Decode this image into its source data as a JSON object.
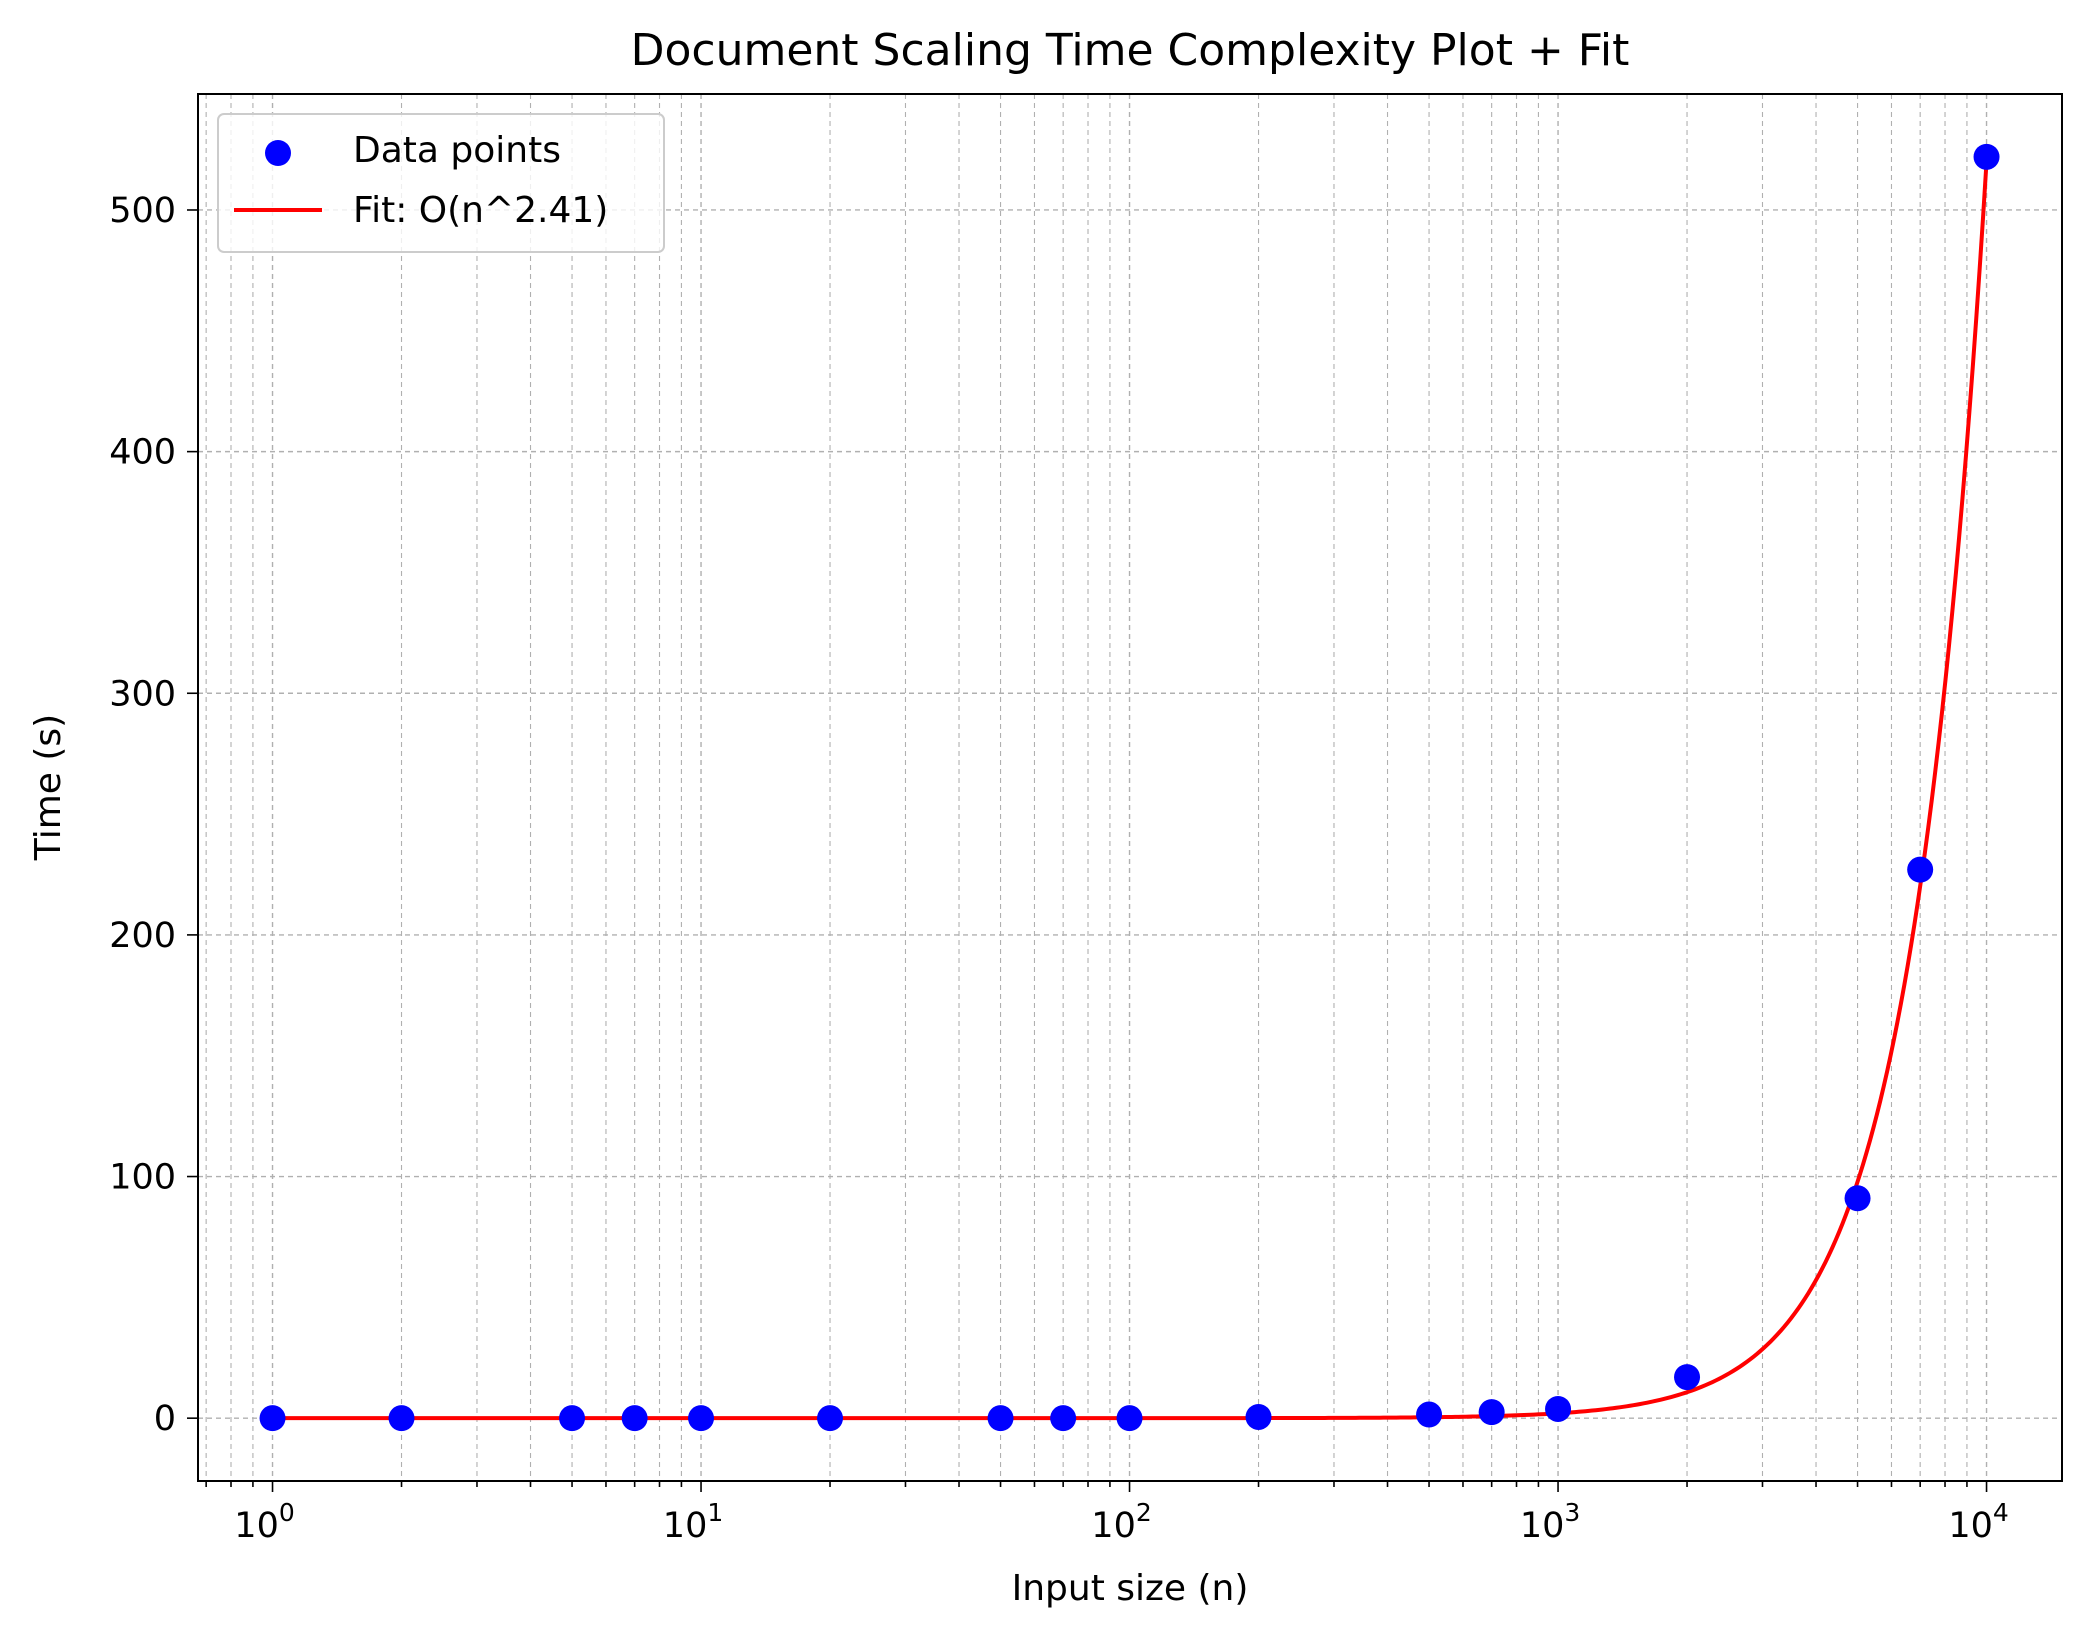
{
  "chart_data": {
    "type": "scatter",
    "title": "Document Scaling Time Complexity Plot + Fit",
    "xlabel": "Input size (n)",
    "ylabel": "Time (s)",
    "xscale": "log",
    "xlim": [
      0.67,
      15000
    ],
    "ylim": [
      -26,
      548
    ],
    "grid": true,
    "legend": "upper-left",
    "colors": {
      "points": "#0000ff",
      "fit": "#ff0000"
    },
    "x_ticks": [
      {
        "value": 1,
        "base": "10",
        "exp": "0"
      },
      {
        "value": 10,
        "base": "10",
        "exp": "1"
      },
      {
        "value": 100,
        "base": "10",
        "exp": "2"
      },
      {
        "value": 1000,
        "base": "10",
        "exp": "3"
      },
      {
        "value": 10000,
        "base": "10",
        "exp": "4"
      }
    ],
    "y_ticks": [
      {
        "value": 0,
        "label": "0"
      },
      {
        "value": 100,
        "label": "100"
      },
      {
        "value": 200,
        "label": "200"
      },
      {
        "value": 300,
        "label": "300"
      },
      {
        "value": 400,
        "label": "400"
      },
      {
        "value": 500,
        "label": "500"
      }
    ],
    "series": [
      {
        "name": "Data points",
        "kind": "scatter",
        "x": [
          1,
          2,
          5,
          7,
          10,
          20,
          50,
          70,
          100,
          200,
          500,
          700,
          1000,
          2000,
          5000,
          7000,
          10000
        ],
        "y": [
          0,
          0,
          0,
          0,
          0,
          0,
          0,
          0,
          0,
          0.5,
          1.5,
          2.5,
          3.8,
          17,
          91,
          227,
          522
        ]
      },
      {
        "name": "Fit: O(n^2.41)",
        "kind": "line",
        "exponent": 2.41,
        "x_range": [
          1,
          10000
        ],
        "y_at_max": 520
      }
    ]
  }
}
